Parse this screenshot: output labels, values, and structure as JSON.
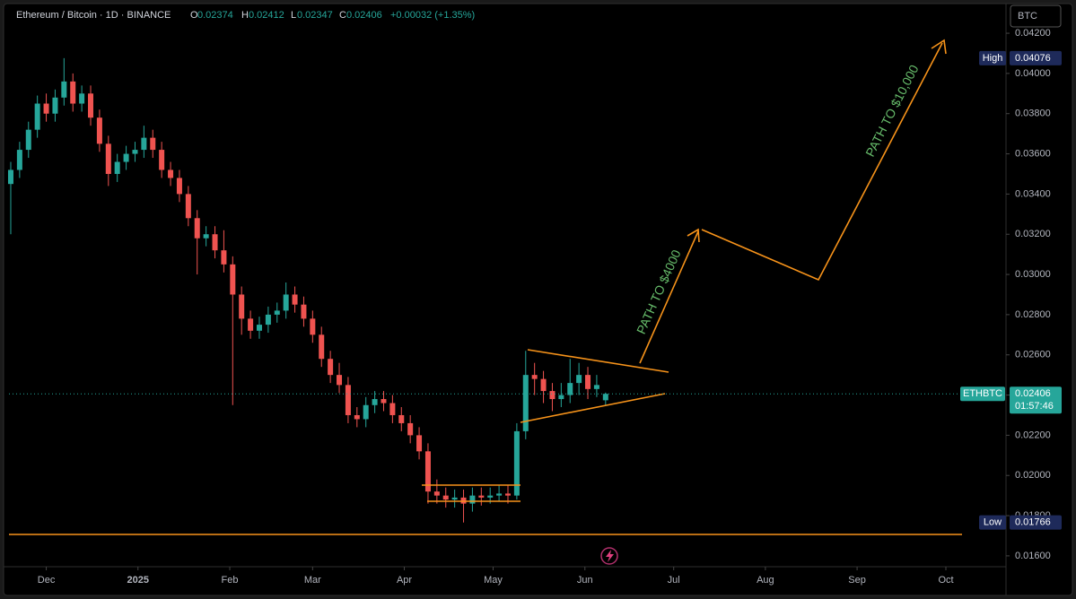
{
  "chart_data": {
    "type": "candlestick",
    "title": "Ethereum / Bitcoin · 1D · BINANCE",
    "symbol": "ETHBTC",
    "currency": "BTC",
    "ohlc_labels": [
      "O",
      "H",
      "L",
      "C"
    ],
    "change": "+0.00032 (+1.35%)",
    "countdown": "01:57:46",
    "high": {
      "label": "High",
      "value": 0.04076
    },
    "low": {
      "label": "Low",
      "value": 0.01766
    },
    "up_color": "#26a69a",
    "down_color": "#ef5350",
    "annotations": [
      "PATH TO $4000",
      "PATH TO $10,000"
    ],
    "xlim": [
      -0.2,
      112
    ],
    "xticks": [
      {
        "value": 4,
        "label": "Dec"
      },
      {
        "value": 14.33,
        "label": "2025"
      },
      {
        "value": 24.67,
        "label": "Feb"
      },
      {
        "value": 34,
        "label": "Mar"
      },
      {
        "value": 44.33,
        "label": "Apr"
      },
      {
        "value": 54.33,
        "label": "May"
      },
      {
        "value": 64.67,
        "label": "Jun"
      },
      {
        "value": 74.67,
        "label": "Jul"
      },
      {
        "value": 85,
        "label": "Aug"
      },
      {
        "value": 95.33,
        "label": "Sep"
      },
      {
        "value": 105.33,
        "label": "Oct"
      }
    ],
    "ylim": [
      0.01546,
      0.04343
    ],
    "yticks": [
      {
        "value": 0.042,
        "label": "0.04200"
      },
      {
        "value": 0.04,
        "label": "0.04000"
      },
      {
        "value": 0.038,
        "label": "0.03800"
      },
      {
        "value": 0.036,
        "label": "0.03600"
      },
      {
        "value": 0.034,
        "label": "0.03400"
      },
      {
        "value": 0.032,
        "label": "0.03200"
      },
      {
        "value": 0.03,
        "label": "0.03000"
      },
      {
        "value": 0.028,
        "label": "0.02800"
      },
      {
        "value": 0.026,
        "label": "0.02600"
      },
      {
        "value": 0.024,
        "label": "0.02400"
      },
      {
        "value": 0.022,
        "label": "0.02200"
      },
      {
        "value": 0.02,
        "label": "0.02000"
      },
      {
        "value": 0.018,
        "label": "0.01800"
      },
      {
        "value": 0.016,
        "label": "0.01600"
      }
    ],
    "candles": [
      [
        0.0345,
        0.0356,
        0.032,
        0.0352
      ],
      [
        0.0352,
        0.0366,
        0.0348,
        0.0362
      ],
      [
        0.0362,
        0.0376,
        0.0358,
        0.0372
      ],
      [
        0.0372,
        0.0389,
        0.0368,
        0.0385
      ],
      [
        0.0385,
        0.039,
        0.0376,
        0.038
      ],
      [
        0.038,
        0.0392,
        0.0376,
        0.0388
      ],
      [
        0.0388,
        0.04076,
        0.0384,
        0.0396
      ],
      [
        0.0396,
        0.04,
        0.0381,
        0.0385
      ],
      [
        0.0385,
        0.0394,
        0.0381,
        0.039
      ],
      [
        0.039,
        0.0394,
        0.0374,
        0.0378
      ],
      [
        0.0378,
        0.0382,
        0.0361,
        0.0365
      ],
      [
        0.0365,
        0.0369,
        0.0344,
        0.035
      ],
      [
        0.035,
        0.036,
        0.0346,
        0.0356
      ],
      [
        0.0356,
        0.0364,
        0.0352,
        0.036
      ],
      [
        0.036,
        0.0366,
        0.0356,
        0.0362
      ],
      [
        0.0362,
        0.0374,
        0.0358,
        0.0368
      ],
      [
        0.0368,
        0.0372,
        0.0358,
        0.0362
      ],
      [
        0.0362,
        0.0366,
        0.0348,
        0.0352
      ],
      [
        0.0352,
        0.0356,
        0.0344,
        0.0348
      ],
      [
        0.0348,
        0.0352,
        0.0336,
        0.034
      ],
      [
        0.034,
        0.0344,
        0.0324,
        0.0328
      ],
      [
        0.0328,
        0.0332,
        0.03,
        0.0318
      ],
      [
        0.0318,
        0.0324,
        0.0314,
        0.032
      ],
      [
        0.032,
        0.0324,
        0.0308,
        0.0312
      ],
      [
        0.0312,
        0.0322,
        0.0301,
        0.0305
      ],
      [
        0.0305,
        0.0309,
        0.0235,
        0.029
      ],
      [
        0.029,
        0.0294,
        0.027,
        0.0278
      ],
      [
        0.0278,
        0.0282,
        0.0268,
        0.0272
      ],
      [
        0.0272,
        0.0279,
        0.0268,
        0.0275
      ],
      [
        0.0275,
        0.0284,
        0.0271,
        0.028
      ],
      [
        0.028,
        0.0286,
        0.0276,
        0.0282
      ],
      [
        0.0282,
        0.0296,
        0.0278,
        0.029
      ],
      [
        0.029,
        0.0294,
        0.0281,
        0.0285
      ],
      [
        0.0285,
        0.0289,
        0.0274,
        0.0278
      ],
      [
        0.0278,
        0.0282,
        0.0266,
        0.027
      ],
      [
        0.027,
        0.0274,
        0.0254,
        0.0258
      ],
      [
        0.0258,
        0.0262,
        0.0246,
        0.025
      ],
      [
        0.025,
        0.0256,
        0.0241,
        0.0245
      ],
      [
        0.0245,
        0.0249,
        0.0226,
        0.023
      ],
      [
        0.023,
        0.0234,
        0.0224,
        0.0228
      ],
      [
        0.0228,
        0.0239,
        0.0224,
        0.0235
      ],
      [
        0.0235,
        0.0242,
        0.0231,
        0.0238
      ],
      [
        0.0238,
        0.0242,
        0.0232,
        0.0236
      ],
      [
        0.0236,
        0.024,
        0.0226,
        0.023
      ],
      [
        0.023,
        0.0234,
        0.0222,
        0.0226
      ],
      [
        0.0226,
        0.023,
        0.0216,
        0.022
      ],
      [
        0.022,
        0.0224,
        0.0208,
        0.0212
      ],
      [
        0.0212,
        0.0216,
        0.0186,
        0.0192
      ],
      [
        0.0192,
        0.0198,
        0.0186,
        0.019
      ],
      [
        0.019,
        0.0194,
        0.0184,
        0.0188
      ],
      [
        0.0188,
        0.0193,
        0.0184,
        0.0189
      ],
      [
        0.0189,
        0.0193,
        0.01766,
        0.0186
      ],
      [
        0.0186,
        0.0194,
        0.0182,
        0.019
      ],
      [
        0.019,
        0.0194,
        0.0185,
        0.0189
      ],
      [
        0.0189,
        0.0194,
        0.0186,
        0.019
      ],
      [
        0.019,
        0.0195,
        0.0187,
        0.0191
      ],
      [
        0.0191,
        0.0195,
        0.0186,
        0.019
      ],
      [
        0.019,
        0.0226,
        0.0188,
        0.0222
      ],
      [
        0.0222,
        0.0262,
        0.0218,
        0.025
      ],
      [
        0.025,
        0.0256,
        0.024,
        0.0248
      ],
      [
        0.0248,
        0.0252,
        0.0236,
        0.0242
      ],
      [
        0.0242,
        0.0246,
        0.0232,
        0.0238
      ],
      [
        0.0238,
        0.0246,
        0.0234,
        0.024
      ],
      [
        0.024,
        0.0258,
        0.0236,
        0.0246
      ],
      [
        0.0246,
        0.0256,
        0.024,
        0.025
      ],
      [
        0.025,
        0.0254,
        0.0238,
        0.0243
      ],
      [
        0.0243,
        0.025,
        0.0239,
        0.0245
      ],
      [
        0.02374,
        0.02412,
        0.02347,
        0.02406
      ]
    ]
  }
}
